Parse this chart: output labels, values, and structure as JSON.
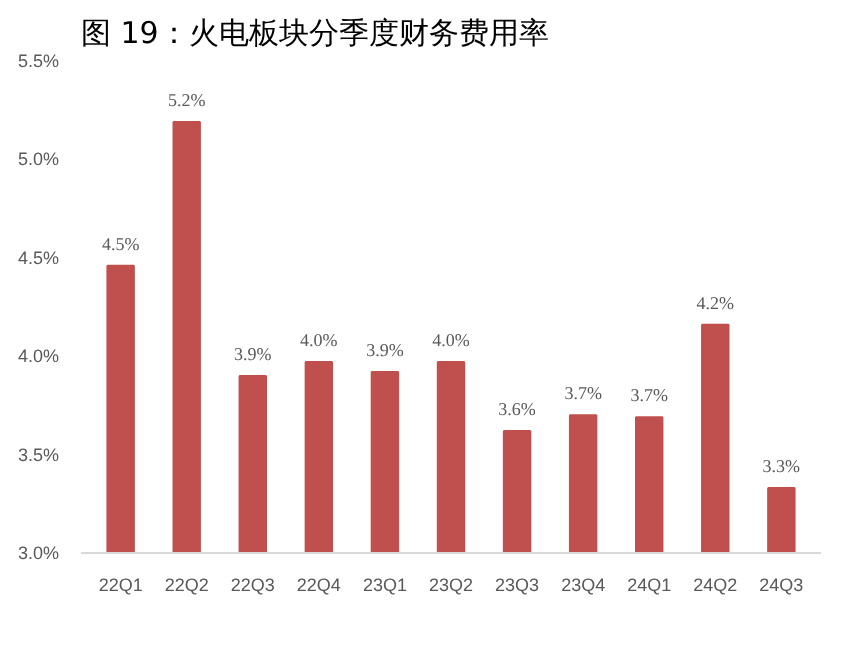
{
  "chart_data": {
    "type": "bar",
    "title": "图 19：火电板块分季度财务费用率",
    "categories": [
      "22Q1",
      "22Q2",
      "22Q3",
      "22Q4",
      "23Q1",
      "23Q2",
      "23Q3",
      "23Q4",
      "24Q1",
      "24Q2",
      "24Q3"
    ],
    "values": [
      4.46,
      5.19,
      3.9,
      3.97,
      3.92,
      3.97,
      3.62,
      3.7,
      3.69,
      4.16,
      3.33
    ],
    "value_labels": [
      "4.5%",
      "5.2%",
      "3.9%",
      "4.0%",
      "3.9%",
      "4.0%",
      "3.6%",
      "3.7%",
      "3.7%",
      "4.2%",
      "3.3%"
    ],
    "color": "#c0504d",
    "ylim": [
      3.0,
      5.5
    ],
    "yticks": [
      {
        "value": 3.0,
        "label": "3.0%"
      },
      {
        "value": 3.5,
        "label": "3.5%"
      },
      {
        "value": 4.0,
        "label": "4.0%"
      },
      {
        "value": 4.5,
        "label": "4.5%"
      },
      {
        "value": 5.0,
        "label": "5.0%"
      },
      {
        "value": 5.5,
        "label": "5.5%"
      }
    ]
  }
}
